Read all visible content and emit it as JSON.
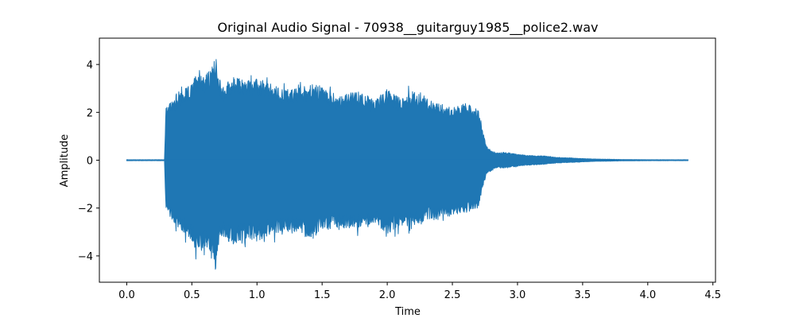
{
  "chart_data": {
    "type": "area",
    "title": "Original Audio Signal - 70938__guitarguy1985__police2.wav",
    "xlabel": "Time",
    "ylabel": "Amplitude",
    "xlim": [
      -0.21,
      4.52
    ],
    "ylim": [
      -5.1,
      5.1
    ],
    "xticks": [
      0,
      0.5,
      1,
      1.5,
      2,
      2.5,
      3,
      3.5,
      4,
      4.5
    ],
    "xtick_labels": [
      "0.0",
      "0.5",
      "1.0",
      "1.5",
      "2.0",
      "2.5",
      "3.0",
      "3.5",
      "4.0",
      "4.5"
    ],
    "yticks": [
      -4,
      -2,
      0,
      2,
      4
    ],
    "ytick_labels": [
      "−4",
      "−2",
      "0",
      "2",
      "4"
    ],
    "grid": false,
    "line_color": "#1f77b4",
    "series": [
      {
        "envelope_x": [
          0.0,
          0.29,
          0.3,
          0.35,
          0.4,
          0.45,
          0.5,
          0.55,
          0.6,
          0.65,
          0.68,
          0.7,
          0.75,
          0.8,
          0.9,
          1.0,
          1.1,
          1.2,
          1.3,
          1.4,
          1.5,
          1.6,
          1.7,
          1.8,
          1.9,
          2.0,
          2.1,
          2.2,
          2.3,
          2.4,
          2.5,
          2.6,
          2.7,
          2.73,
          2.76,
          2.8,
          2.85,
          2.9,
          3.0,
          3.1,
          3.2,
          3.3,
          3.4,
          3.5,
          3.6,
          3.8,
          4.0,
          4.2,
          4.31
        ],
        "envelope_upper": [
          0.02,
          0.02,
          2.2,
          2.5,
          2.8,
          3.0,
          3.2,
          3.9,
          3.6,
          3.8,
          4.6,
          3.5,
          3.1,
          3.5,
          3.4,
          3.4,
          3.2,
          3.0,
          3.0,
          3.2,
          3.1,
          2.7,
          2.8,
          2.9,
          2.5,
          3.0,
          2.6,
          2.9,
          2.6,
          2.4,
          2.2,
          2.4,
          2.1,
          1.3,
          0.6,
          0.4,
          0.3,
          0.35,
          0.25,
          0.2,
          0.18,
          0.12,
          0.1,
          0.07,
          0.05,
          0.03,
          0.02,
          0.02,
          0.02
        ],
        "envelope_lower": [
          -0.02,
          -0.02,
          -2.2,
          -2.5,
          -2.9,
          -3.1,
          -3.4,
          -4.0,
          -3.7,
          -3.9,
          -4.7,
          -3.6,
          -3.2,
          -3.6,
          -3.3,
          -3.4,
          -3.1,
          -3.0,
          -3.0,
          -3.3,
          -3.0,
          -2.8,
          -2.9,
          -2.8,
          -2.6,
          -3.1,
          -2.7,
          -2.8,
          -2.5,
          -2.5,
          -2.3,
          -2.2,
          -2.0,
          -1.2,
          -0.6,
          -0.45,
          -0.3,
          -0.35,
          -0.25,
          -0.2,
          -0.18,
          -0.12,
          -0.1,
          -0.07,
          -0.05,
          -0.03,
          -0.02,
          -0.02,
          -0.02
        ]
      }
    ]
  }
}
